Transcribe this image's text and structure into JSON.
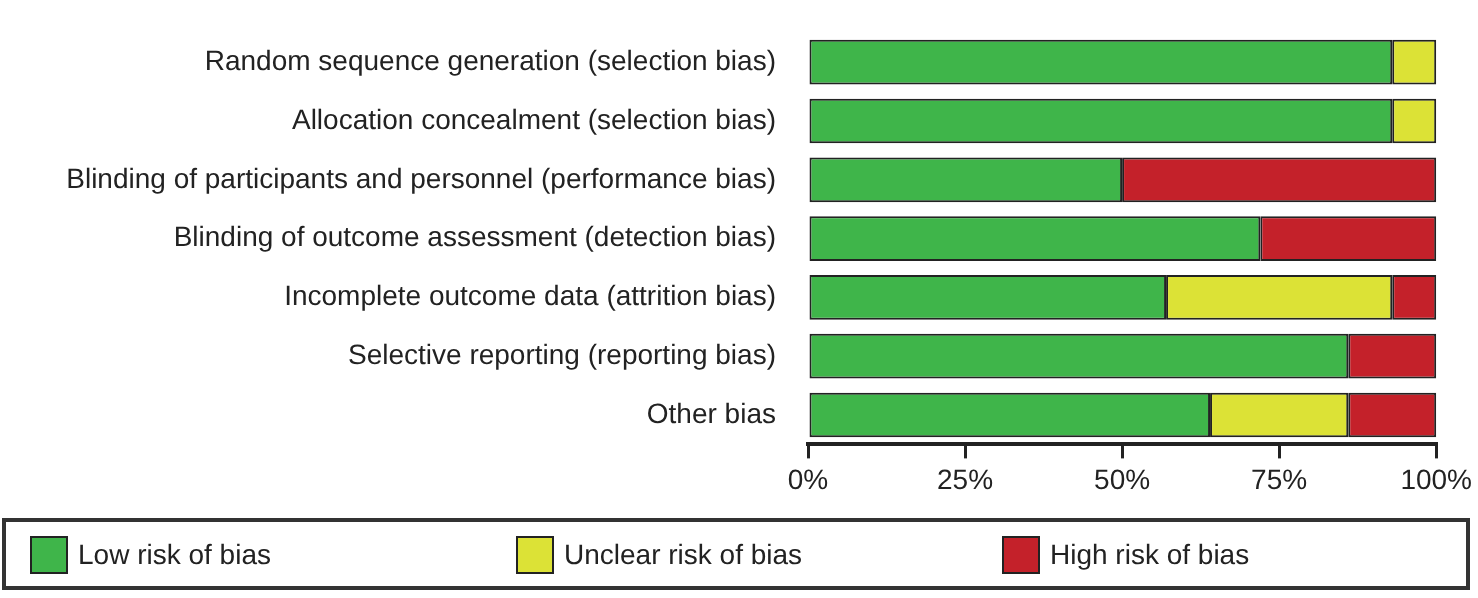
{
  "chart_data": {
    "type": "bar",
    "orientation": "horizontal",
    "stacked": true,
    "categories": [
      "Random sequence generation (selection bias)",
      "Allocation concealment (selection bias)",
      "Blinding of participants and personnel (performance bias)",
      "Blinding of outcome assessment (detection bias)",
      "Incomplete outcome data (attrition bias)",
      "Selective reporting (reporting bias)",
      "Other bias"
    ],
    "series": [
      {
        "name": "Low risk of bias",
        "color": "#3fb54a",
        "values": [
          93,
          93,
          50,
          72,
          57,
          86,
          64
        ]
      },
      {
        "name": "Unclear risk of bias",
        "color": "#dce236",
        "values": [
          7,
          7,
          0,
          0,
          36,
          0,
          22
        ]
      },
      {
        "name": "High risk of bias",
        "color": "#c4212a",
        "values": [
          0,
          0,
          50,
          28,
          7,
          14,
          14
        ]
      }
    ],
    "xlim": [
      0,
      100
    ],
    "xticks": [
      {
        "value": 0,
        "label": "0%"
      },
      {
        "value": 25,
        "label": "25%"
      },
      {
        "value": 50,
        "label": "50%"
      },
      {
        "value": 75,
        "label": "75%"
      },
      {
        "value": 100,
        "label": "100%"
      }
    ],
    "grid": false,
    "legend": "bottom"
  }
}
